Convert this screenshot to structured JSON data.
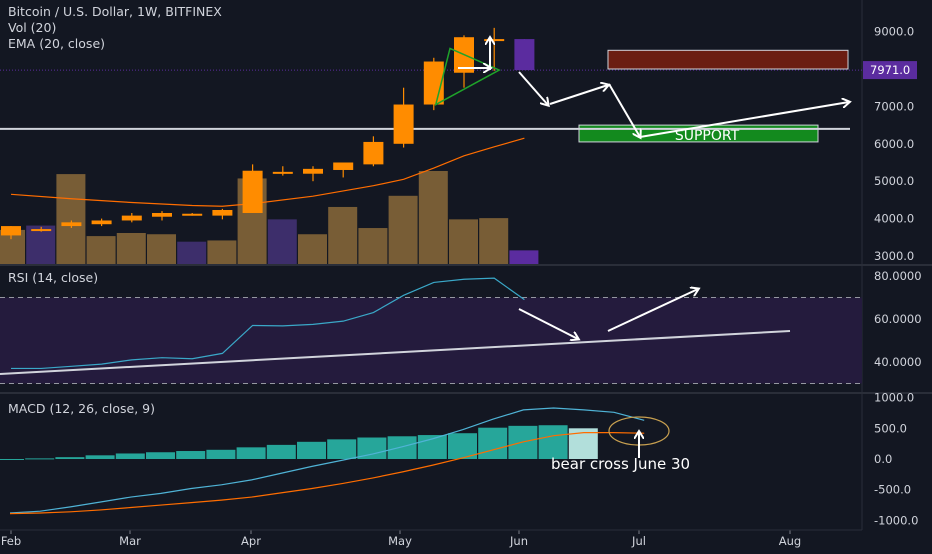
{
  "header": {
    "title": "Bitcoin / U.S. Dollar, 1W, BITFINEX",
    "vol_label": "Vol (20)",
    "ema_label": "EMA (20, close)",
    "rsi_label": "RSI (14, close)",
    "macd_label": "MACD (12, 26, close, 9)"
  },
  "annotations": {
    "support_label": "SUPPORT",
    "bear_cross_label": "bear cross June 30",
    "last_price_label": "7971.0"
  },
  "colors": {
    "background": "#131722",
    "up_candle": "#ff8c00",
    "down_candle": "#5b2c9f",
    "volume": "#8b6a3a",
    "rsi_line": "#3aa8c8",
    "rsi_band": "#241b3d",
    "macd_hist": "#26a69a",
    "macd_line": "#4fb3d6",
    "signal_line": "#ff6d00",
    "support_box": "#138a1e",
    "resistance_box": "#6b1d12"
  },
  "chart_data": [
    {
      "type": "candlestick",
      "title": "Bitcoin / U.S. Dollar, 1W, BITFINEX",
      "y_ticks": [
        "9000.0",
        "8000.0",
        "7000.0",
        "6000.0",
        "5000.0",
        "4000.0",
        "3000.0"
      ],
      "ylim": [
        2900,
        9500
      ],
      "x_ticks": [
        "Feb",
        "Mar",
        "Apr",
        "May",
        "Jun",
        "Jul",
        "Aug"
      ],
      "last_price": 7971.0,
      "candles": [
        {
          "week": 0,
          "open": 3550,
          "high": 3800,
          "low": 3450,
          "close": 3800
        },
        {
          "week": 1,
          "open": 3700,
          "high": 3780,
          "low": 3650,
          "close": 3720
        },
        {
          "week": 2,
          "open": 3800,
          "high": 3950,
          "low": 3750,
          "close": 3900
        },
        {
          "week": 3,
          "open": 3850,
          "high": 4000,
          "low": 3800,
          "close": 3950
        },
        {
          "week": 4,
          "open": 3950,
          "high": 4150,
          "low": 3900,
          "close": 4080
        },
        {
          "week": 5,
          "open": 4050,
          "high": 4200,
          "low": 3950,
          "close": 4150
        },
        {
          "week": 6,
          "open": 4130,
          "high": 4150,
          "low": 4080,
          "close": 4100
        },
        {
          "week": 7,
          "open": 4080,
          "high": 4260,
          "low": 3980,
          "close": 4230
        },
        {
          "week": 8,
          "open": 4150,
          "high": 5450,
          "low": 4150,
          "close": 5280
        },
        {
          "week": 9,
          "open": 5250,
          "high": 5400,
          "low": 5150,
          "close": 5250
        },
        {
          "week": 10,
          "open": 5200,
          "high": 5400,
          "low": 5000,
          "close": 5330
        },
        {
          "week": 11,
          "open": 5300,
          "high": 5500,
          "low": 5100,
          "close": 5500
        },
        {
          "week": 12,
          "open": 5450,
          "high": 6200,
          "low": 5400,
          "close": 6050
        },
        {
          "week": 13,
          "open": 6000,
          "high": 7500,
          "low": 5900,
          "close": 7050
        },
        {
          "week": 14,
          "open": 7050,
          "high": 8300,
          "low": 6900,
          "close": 8200
        },
        {
          "week": 15,
          "open": 7900,
          "high": 8900,
          "low": 7500,
          "close": 8850
        },
        {
          "week": 16,
          "open": 8750,
          "high": 9100,
          "low": 7950,
          "close": 8800
        },
        {
          "week": 17,
          "open": 8800,
          "high": 8800,
          "low": 7971,
          "close": 7971
        }
      ],
      "volume": [
        {
          "week": 0,
          "value": 0.55
        },
        {
          "week": 1,
          "value": 0.62
        },
        {
          "week": 2,
          "value": 1.45
        },
        {
          "week": 3,
          "value": 0.45
        },
        {
          "week": 4,
          "value": 0.5
        },
        {
          "week": 5,
          "value": 0.48
        },
        {
          "week": 6,
          "value": 0.36
        },
        {
          "week": 7,
          "value": 0.38
        },
        {
          "week": 8,
          "value": 1.38
        },
        {
          "week": 9,
          "value": 0.72
        },
        {
          "week": 10,
          "value": 0.48
        },
        {
          "week": 11,
          "value": 0.92
        },
        {
          "week": 12,
          "value": 0.58
        },
        {
          "week": 13,
          "value": 1.1
        },
        {
          "week": 14,
          "value": 1.5
        },
        {
          "week": 15,
          "value": 0.72
        },
        {
          "week": 16,
          "value": 0.74
        },
        {
          "week": 17,
          "value": 0.22
        }
      ],
      "ema": [
        {
          "week": 0,
          "value": 4650
        },
        {
          "week": 2,
          "value": 4530
        },
        {
          "week": 4,
          "value": 4430
        },
        {
          "week": 6,
          "value": 4350
        },
        {
          "week": 7,
          "value": 4330
        },
        {
          "week": 8,
          "value": 4400
        },
        {
          "week": 10,
          "value": 4600
        },
        {
          "week": 12,
          "value": 4880
        },
        {
          "week": 13,
          "value": 5050
        },
        {
          "week": 14,
          "value": 5350
        },
        {
          "week": 15,
          "value": 5680
        },
        {
          "week": 16,
          "value": 5920
        },
        {
          "week": 17,
          "value": 6150
        }
      ],
      "horizontal_line": 6400,
      "support_zone": [
        6050,
        6500
      ],
      "resistance_zone": [
        8000,
        8500
      ]
    },
    {
      "type": "line",
      "title": "RSI (14, close)",
      "y_ticks": [
        "80.0000",
        "60.0000",
        "40.0000"
      ],
      "ylim": [
        24,
        86
      ],
      "overbought": 70,
      "oversold": 30,
      "series": [
        {
          "x": [
            0,
            1,
            2,
            3,
            4,
            5,
            6,
            7,
            8,
            9,
            10,
            11,
            12,
            13,
            14,
            15,
            16,
            17
          ],
          "values": [
            37,
            37,
            38,
            39,
            41,
            42,
            41.5,
            44,
            57,
            56.8,
            57.5,
            59,
            63,
            71,
            77,
            78.5,
            79,
            69
          ]
        }
      ]
    },
    {
      "type": "bar",
      "title": "MACD (12, 26, close, 9)",
      "y_ticks": [
        "1000.0",
        "500.0",
        "0.0",
        "-500.0",
        "-1000.0"
      ],
      "ylim": [
        -1050,
        1050
      ],
      "histogram": [
        0,
        10,
        30,
        60,
        90,
        110,
        130,
        150,
        190,
        230,
        280,
        320,
        350,
        370,
        390,
        420,
        510,
        540,
        550,
        500
      ],
      "macd": [
        -880,
        -850,
        -780,
        -700,
        -620,
        -560,
        -480,
        -420,
        -340,
        -230,
        -120,
        -20,
        80,
        200,
        330,
        480,
        650,
        800,
        830,
        800,
        760,
        630
      ],
      "signal": [
        -890,
        -880,
        -860,
        -830,
        -790,
        -750,
        -710,
        -670,
        -620,
        -550,
        -480,
        -400,
        -310,
        -210,
        -100,
        20,
        150,
        280,
        380,
        430,
        430,
        420
      ],
      "projected_cross_label": "bear cross June 30"
    }
  ]
}
